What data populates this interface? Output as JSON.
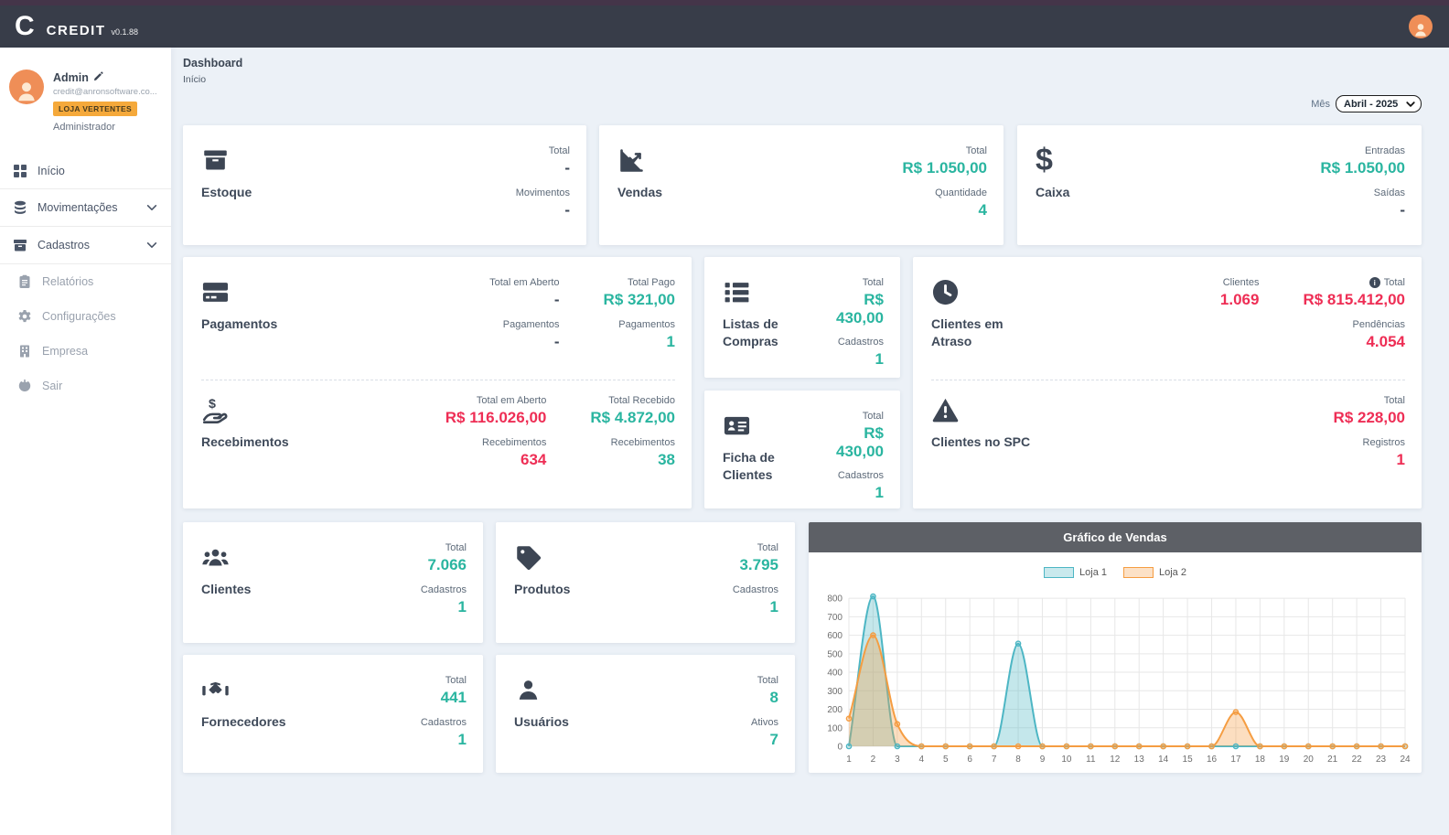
{
  "header": {
    "logo_letter": "C",
    "app_name": "CREDIT",
    "version": "v0.1.88",
    "avatar_icon": "person-icon"
  },
  "sidebar": {
    "user": {
      "name": "Admin",
      "email": "credit@anronsoftware.co...",
      "badge": "LOJA VERTENTES",
      "role": "Administrador",
      "edit_icon": "pencil-icon",
      "avatar_icon": "person-icon"
    },
    "items": [
      {
        "id": "inicio",
        "label": "Início",
        "icon": "grid-icon",
        "active": true
      },
      {
        "id": "movimentacoes",
        "label": "Movimentações",
        "icon": "coins-icon",
        "expandable": true
      },
      {
        "id": "cadastros",
        "label": "Cadastros",
        "icon": "archive-icon",
        "expandable": true
      },
      {
        "id": "relatorios",
        "label": "Relatórios",
        "icon": "clipboard-icon",
        "muted": true
      },
      {
        "id": "configuracoes",
        "label": "Configurações",
        "icon": "gear-icon",
        "muted": true
      },
      {
        "id": "empresa",
        "label": "Empresa",
        "icon": "building-icon",
        "muted": true
      },
      {
        "id": "sair",
        "label": "Sair",
        "icon": "power-icon",
        "muted": true
      }
    ]
  },
  "breadcrumb": {
    "title": "Dashboard",
    "subtitle": "Início"
  },
  "filters": {
    "month_label": "Mês",
    "month_value": "Abril - 2025"
  },
  "cards": [
    {
      "id": "estoque",
      "sections": [
        {
          "id": "estoque",
          "title": "Estoque",
          "icon": "box-icon",
          "columns": [
            [
              {
                "label": "Total",
                "value": "-",
                "color": "dark"
              },
              {
                "label": "Movimentos",
                "value": "-",
                "color": "dark"
              }
            ]
          ]
        }
      ]
    },
    {
      "id": "vendas",
      "sections": [
        {
          "id": "vendas",
          "title": "Vendas",
          "icon": "chart-line-icon",
          "columns": [
            [
              {
                "label": "Total",
                "value": "R$ 1.050,00",
                "color": "green"
              },
              {
                "label": "Quantidade",
                "value": "4",
                "color": "green"
              }
            ]
          ]
        }
      ]
    },
    {
      "id": "caixa",
      "sections": [
        {
          "id": "caixa",
          "title": "Caixa",
          "icon": "dollar-icon",
          "columns": [
            [
              {
                "label": "Entradas",
                "value": "R$ 1.050,00",
                "color": "green"
              },
              {
                "label": "Saídas",
                "value": "-",
                "color": "dark"
              }
            ]
          ]
        }
      ]
    },
    {
      "id": "pagamentos-recebimentos",
      "sections": [
        {
          "id": "pagamentos",
          "title": "Pagamentos",
          "icon": "credit-card-icon",
          "columns": [
            [
              {
                "label": "Total em Aberto",
                "value": "-",
                "color": "dark"
              },
              {
                "label": "Pagamentos",
                "value": "-",
                "color": "dark"
              }
            ],
            [
              {
                "label": "Total Pago",
                "value": "R$ 321,00",
                "color": "green"
              },
              {
                "label": "Pagamentos",
                "value": "1",
                "color": "green"
              }
            ]
          ]
        },
        {
          "id": "recebimentos",
          "title": "Recebimentos",
          "icon": "hand-dollar-icon",
          "columns": [
            [
              {
                "label": "Total em Aberto",
                "value": "R$ 116.026,00",
                "color": "red"
              },
              {
                "label": "Recebimentos",
                "value": "634",
                "color": "red"
              }
            ],
            [
              {
                "label": "Total Recebido",
                "value": "R$ 4.872,00",
                "color": "green"
              },
              {
                "label": "Recebimentos",
                "value": "38",
                "color": "green"
              }
            ]
          ]
        }
      ]
    },
    {
      "id": "listas-de-compras",
      "sections": [
        {
          "id": "listas-de-compras",
          "title": "Listas de Compras",
          "icon": "list-icon",
          "columns": [
            [
              {
                "label": "Total",
                "value": "R$ 430,00",
                "color": "green"
              },
              {
                "label": "Cadastros",
                "value": "1",
                "color": "green"
              }
            ]
          ]
        }
      ]
    },
    {
      "id": "ficha-de-clientes",
      "sections": [
        {
          "id": "ficha-de-clientes",
          "title": "Ficha de Clientes",
          "icon": "id-card-icon",
          "columns": [
            [
              {
                "label": "Total",
                "value": "R$ 430,00",
                "color": "green"
              },
              {
                "label": "Cadastros",
                "value": "1",
                "color": "green"
              }
            ]
          ]
        }
      ]
    },
    {
      "id": "clientes-atraso-spc",
      "sections": [
        {
          "id": "clientes-em-atraso",
          "title": "Clientes em Atraso",
          "icon": "clock-icon",
          "columns": [
            [
              {
                "label": "Clientes",
                "value": "1.069",
                "color": "red"
              }
            ],
            [
              {
                "label": "Total",
                "value": "R$ 815.412,00",
                "color": "red",
                "info": true
              },
              {
                "label": "Pendências",
                "value": "4.054",
                "color": "red"
              }
            ]
          ]
        },
        {
          "id": "clientes-no-spc",
          "title": "Clientes no SPC",
          "icon": "warning-icon",
          "columns": [
            [
              {
                "label": "Total",
                "value": "R$ 228,00",
                "color": "red"
              },
              {
                "label": "Registros",
                "value": "1",
                "color": "red"
              }
            ]
          ]
        }
      ]
    },
    {
      "id": "clientes",
      "sections": [
        {
          "id": "clientes",
          "title": "Clientes",
          "icon": "users-icon",
          "columns": [
            [
              {
                "label": "Total",
                "value": "7.066",
                "color": "green"
              },
              {
                "label": "Cadastros",
                "value": "1",
                "color": "green"
              }
            ]
          ]
        }
      ]
    },
    {
      "id": "produtos",
      "sections": [
        {
          "id": "produtos",
          "title": "Produtos",
          "icon": "tag-icon",
          "columns": [
            [
              {
                "label": "Total",
                "value": "3.795",
                "color": "green"
              },
              {
                "label": "Cadastros",
                "value": "1",
                "color": "green"
              }
            ]
          ]
        }
      ]
    },
    {
      "id": "fornecedores",
      "sections": [
        {
          "id": "fornecedores",
          "title": "Fornecedores",
          "icon": "handshake-icon",
          "columns": [
            [
              {
                "label": "Total",
                "value": "441",
                "color": "green"
              },
              {
                "label": "Cadastros",
                "value": "1",
                "color": "green"
              }
            ]
          ]
        }
      ]
    },
    {
      "id": "usuarios",
      "sections": [
        {
          "id": "usuarios",
          "title": "Usuários",
          "icon": "user-icon",
          "columns": [
            [
              {
                "label": "Total",
                "value": "8",
                "color": "green"
              },
              {
                "label": "Ativos",
                "value": "7",
                "color": "green"
              }
            ]
          ]
        }
      ]
    }
  ],
  "chart_data": {
    "type": "area",
    "title": "Gráfico de Vendas",
    "x": [
      1,
      2,
      3,
      4,
      5,
      6,
      7,
      8,
      9,
      10,
      11,
      12,
      13,
      14,
      15,
      16,
      17,
      18,
      19,
      20,
      21,
      22,
      23,
      24
    ],
    "xlabel": "",
    "ylabel": "",
    "ylim": [
      0,
      850
    ],
    "yticks": [
      0,
      100,
      200,
      300,
      400,
      500,
      600,
      700,
      800
    ],
    "grid": true,
    "legend_position": "top",
    "series": [
      {
        "name": "Loja 1",
        "color": "#4db6c4",
        "values": [
          0,
          810,
          0,
          0,
          0,
          0,
          0,
          555,
          0,
          0,
          0,
          0,
          0,
          0,
          0,
          0,
          0,
          0,
          0,
          0,
          0,
          0,
          0,
          0
        ]
      },
      {
        "name": "Loja 2",
        "color": "#f59d42",
        "values": [
          150,
          600,
          120,
          0,
          0,
          0,
          0,
          0,
          0,
          0,
          0,
          0,
          0,
          0,
          0,
          0,
          185,
          0,
          0,
          0,
          0,
          0,
          0,
          0
        ]
      }
    ]
  },
  "colors": {
    "positive": "#2ab5a0",
    "negative": "#ee2e55",
    "neutral": "#3f4a5a",
    "badge_bg": "#f5a93b",
    "header_bg": "#383d49",
    "top_strip": "#443549",
    "chart_header_bg": "#5d6066",
    "series_loja1": "#4db6c4",
    "series_loja2": "#f59d42"
  }
}
